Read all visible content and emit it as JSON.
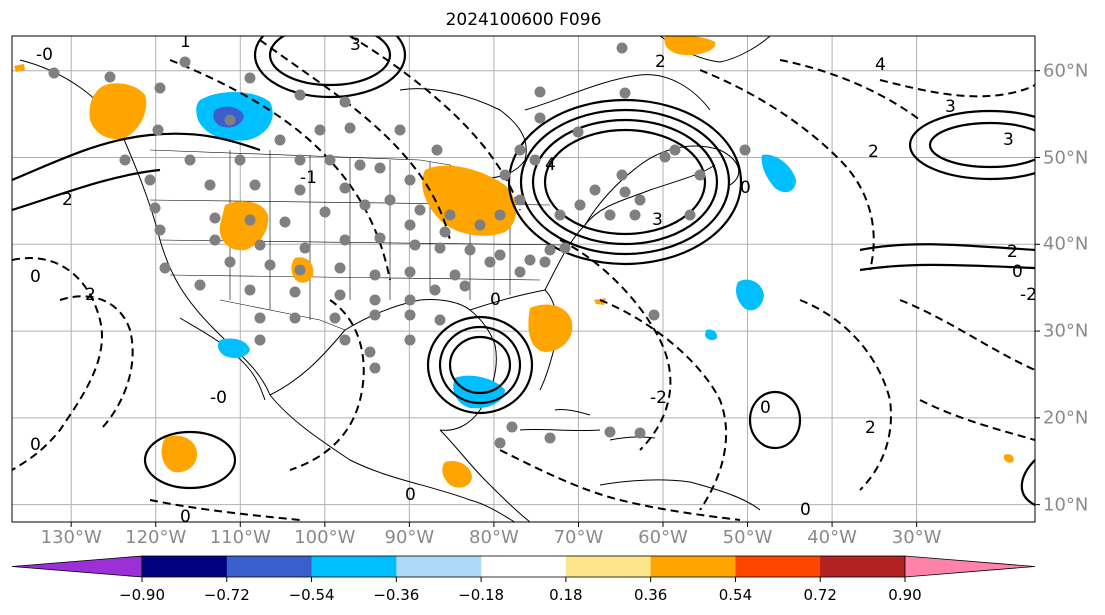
{
  "title": "2024100600 F096",
  "map": {
    "lon_labels": [
      {
        "lon": -130,
        "text": "130°W"
      },
      {
        "lon": -120,
        "text": "120°W"
      },
      {
        "lon": -110,
        "text": "110°W"
      },
      {
        "lon": -100,
        "text": "100°W"
      },
      {
        "lon": -90,
        "text": "90°W"
      },
      {
        "lon": -80,
        "text": "80°W"
      },
      {
        "lon": -70,
        "text": "70°W"
      },
      {
        "lon": -60,
        "text": "60°W"
      },
      {
        "lon": -50,
        "text": "50°W"
      },
      {
        "lon": -40,
        "text": "40°W"
      },
      {
        "lon": -30,
        "text": "30°W"
      }
    ],
    "lat_labels": [
      {
        "lat": 60,
        "text": "60°N"
      },
      {
        "lat": 50,
        "text": "50°N"
      },
      {
        "lat": 40,
        "text": "40°N"
      },
      {
        "lat": 30,
        "text": "30°N"
      },
      {
        "lat": 20,
        "text": "20°N"
      },
      {
        "lat": 10,
        "text": "10°N"
      }
    ],
    "extent": {
      "lon_min": -137,
      "lon_max": -16,
      "lat_min": 8,
      "lat_max": 64
    },
    "contour_label_values": [
      "0",
      "1",
      "2",
      "3",
      "4",
      "-0",
      "-1",
      "-2"
    ],
    "station_color": "#808080",
    "contour_color": "#000000",
    "grid_color": "#b0b0b0",
    "label_color": "#8a8a8a"
  },
  "colorbar": {
    "tick_labels": [
      "−0.90",
      "−0.72",
      "−0.54",
      "−0.36",
      "−0.18",
      "0.18",
      "0.36",
      "0.54",
      "0.72",
      "0.90"
    ],
    "bins": [
      {
        "range": "< -0.90",
        "color": "#9b30d9"
      },
      {
        "range": "-0.90 to -0.72",
        "color": "#000080"
      },
      {
        "range": "-0.72 to -0.54",
        "color": "#3a5fcd"
      },
      {
        "range": "-0.54 to -0.36",
        "color": "#00bfff"
      },
      {
        "range": "-0.36 to -0.18",
        "color": "#add8f6"
      },
      {
        "range": "-0.18 to 0.18",
        "color": "#ffffff"
      },
      {
        "range": "0.18 to 0.36",
        "color": "#fde68a"
      },
      {
        "range": "0.36 to 0.54",
        "color": "#ffa500"
      },
      {
        "range": "0.54 to 0.72",
        "color": "#ff4500"
      },
      {
        "range": "0.72 to 0.90",
        "color": "#b22222"
      },
      {
        "range": "> 0.90",
        "color": "#ff82ab"
      }
    ]
  }
}
